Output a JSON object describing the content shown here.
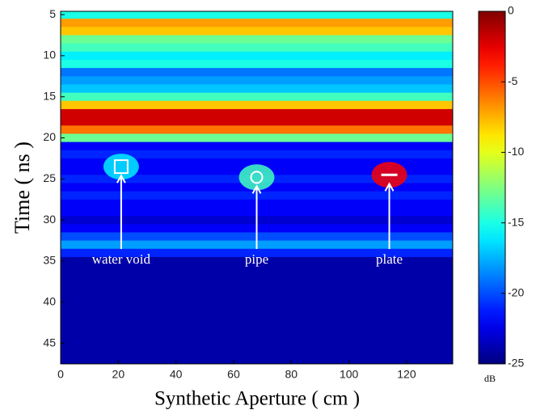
{
  "chart_data": {
    "type": "heatmap",
    "xlabel": "Synthetic Aperture ( cm )",
    "ylabel": "Time ( ns )",
    "xlim": [
      0,
      136
    ],
    "xticks": [
      0,
      20,
      40,
      60,
      80,
      100,
      120
    ],
    "ylim": [
      4.6,
      47.5
    ],
    "yticks": [
      5,
      10,
      15,
      20,
      25,
      30,
      35,
      40,
      45
    ],
    "y": [
      5,
      6,
      7,
      8,
      9,
      10,
      11,
      12,
      13,
      14,
      15,
      16,
      17,
      18,
      19,
      20,
      21,
      22,
      23,
      24,
      25,
      26,
      27,
      28,
      29,
      30,
      31,
      32,
      33,
      34,
      35,
      36,
      37,
      38,
      39,
      40,
      41,
      42,
      43,
      44,
      45,
      46,
      47
    ],
    "values": [
      -15,
      -7,
      -8,
      -13,
      -14,
      -16,
      -15,
      -19,
      -18,
      -17,
      -14,
      -8,
      -2,
      -2,
      -6,
      -13,
      -22,
      -21,
      -22,
      -22,
      -21,
      -22,
      -21,
      -22,
      -22,
      -23,
      -22,
      -20,
      -18,
      -21,
      -24,
      -24,
      -24,
      -24,
      -24,
      -24,
      -24,
      -24,
      -24,
      -24,
      -24,
      -24,
      -24
    ],
    "targets": [
      {
        "label": "water void",
        "x": 21,
        "y": 23.5,
        "value": -16
      },
      {
        "label": "pipe",
        "x": 68,
        "y": 24.8,
        "value": -14
      },
      {
        "label": "plate",
        "x": 114,
        "y": 24.5,
        "value": -3
      }
    ],
    "colorbar": {
      "label": "dB",
      "lim": [
        -25,
        0
      ],
      "ticks": [
        0,
        -5,
        -10,
        -15,
        -20,
        -25
      ]
    }
  }
}
